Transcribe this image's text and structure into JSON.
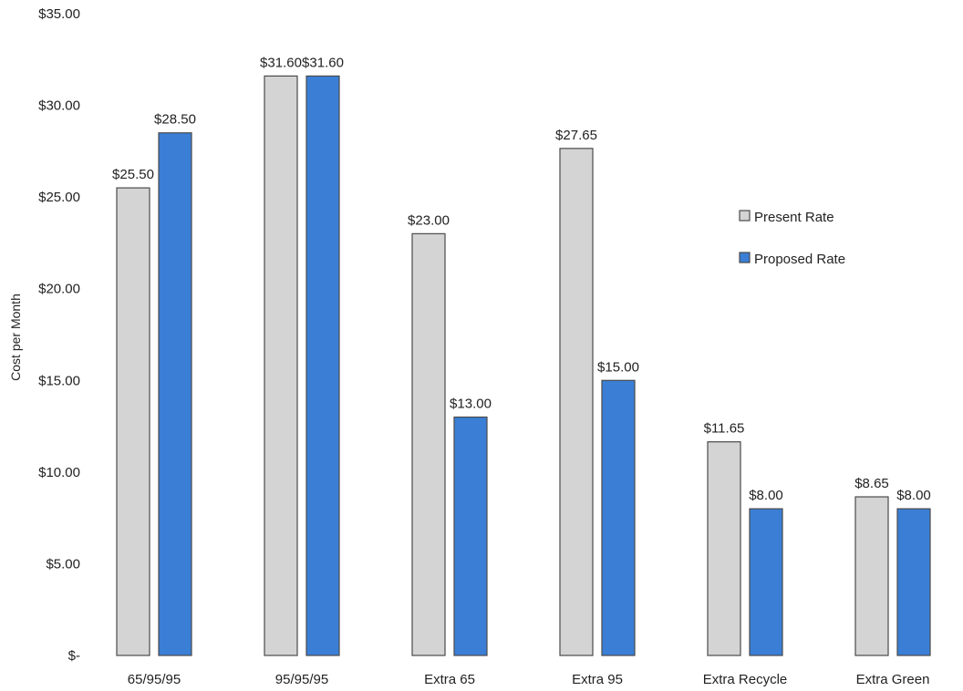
{
  "chart_data": {
    "type": "bar",
    "title": "",
    "xlabel": "",
    "ylabel": "Cost per Month",
    "ylim": [
      0,
      35
    ],
    "y_ticks": [
      0,
      5,
      10,
      15,
      20,
      25,
      30,
      35
    ],
    "y_tick_labels": [
      "$-",
      "$5.00",
      "$10.00",
      "$15.00",
      "$20.00",
      "$25.00",
      "$30.00",
      "$35.00"
    ],
    "grid": false,
    "legend_position": "right",
    "categories": [
      "65/95/95",
      "95/95/95",
      "Extra 65",
      "Extra 95",
      "Extra Recycle",
      "Extra Green"
    ],
    "series": [
      {
        "name": "Present Rate",
        "color": "#d4d4d4",
        "values": [
          25.5,
          31.6,
          23.0,
          27.65,
          11.65,
          8.65
        ],
        "labels": [
          "$25.50",
          "$31.60",
          "$23.00",
          "$27.65",
          "$11.65",
          "$8.65"
        ]
      },
      {
        "name": "Proposed Rate",
        "color": "#3a7fd5",
        "values": [
          28.5,
          31.6,
          13.0,
          15.0,
          8.0,
          8.0
        ],
        "labels": [
          "$28.50",
          "$31.60",
          "$13.00",
          "$15.00",
          "$8.00",
          "$8.00"
        ]
      }
    ]
  }
}
